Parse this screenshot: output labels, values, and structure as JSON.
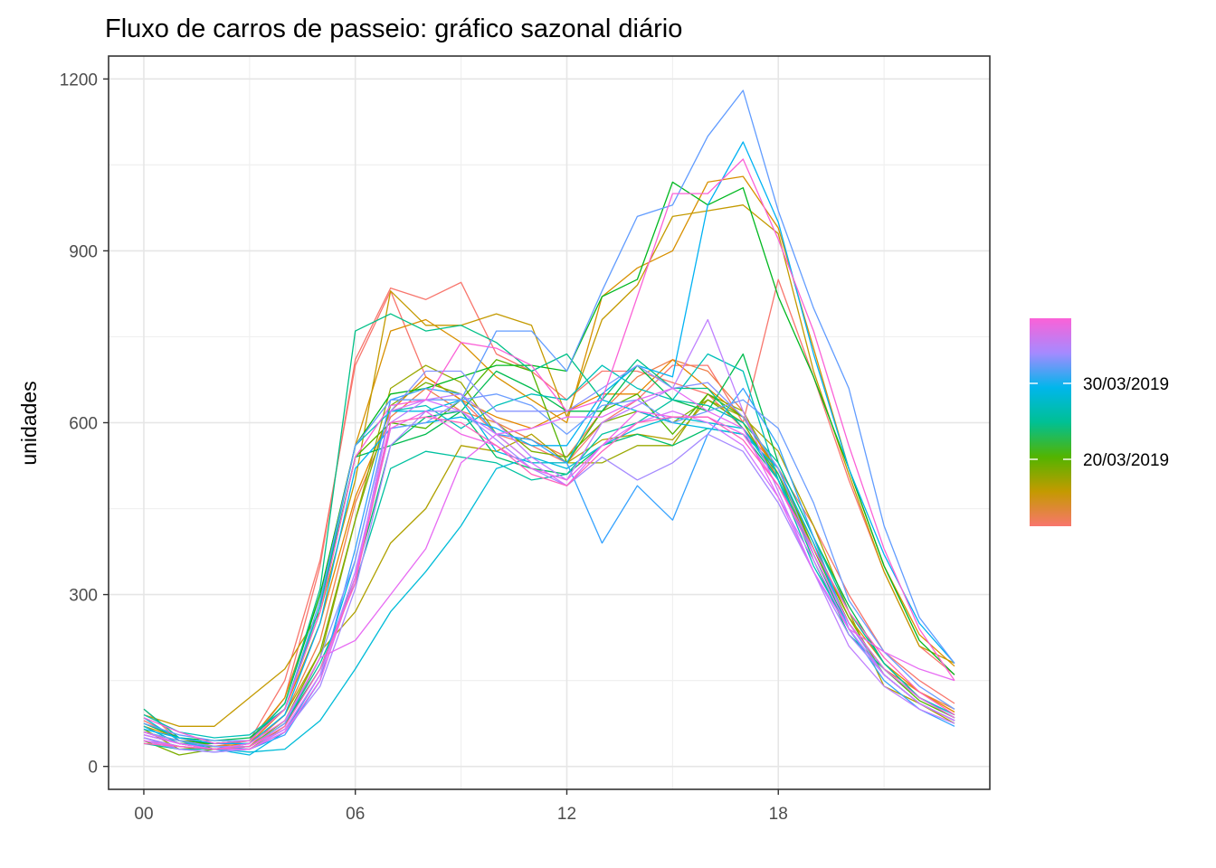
{
  "chart_data": {
    "type": "line",
    "title": "Fluxo de carros de passeio: gráfico sazonal diário",
    "xlabel": "",
    "ylabel": "unidades",
    "x_ticks": [
      "00",
      "06",
      "12",
      "18"
    ],
    "x_tick_values": [
      0,
      6,
      12,
      18
    ],
    "xlim": [
      -1,
      24
    ],
    "y_ticks": [
      "0",
      "300",
      "600",
      "900",
      "1200"
    ],
    "y_tick_values": [
      0,
      300,
      600,
      900,
      1200
    ],
    "ylim": [
      -40,
      1240
    ],
    "x": [
      0,
      1,
      2,
      3,
      4,
      5,
      6,
      7,
      8,
      9,
      10,
      11,
      12,
      13,
      14,
      15,
      16,
      17,
      18,
      19,
      20,
      21,
      22,
      23
    ],
    "grid": true,
    "legend": {
      "type": "colorbar",
      "position": "right",
      "labels": [
        "30/03/2019",
        "20/03/2019"
      ],
      "gradient_colors": [
        "#F8766D",
        "#C49A00",
        "#53B400",
        "#00C094",
        "#00B6EB",
        "#A58AFF",
        "#FB61D7"
      ]
    },
    "series": [
      {
        "color": "#F8766D",
        "values": [
          100,
          45,
          30,
          40,
          120,
          350,
          710,
          835,
          815,
          845,
          720,
          690,
          640,
          690,
          690,
          670,
          650,
          590,
          520,
          420,
          300,
          200,
          150,
          110
        ]
      },
      {
        "color": "#F8766D",
        "values": [
          80,
          50,
          35,
          45,
          150,
          360,
          700,
          830,
          680,
          640,
          580,
          560,
          530,
          600,
          640,
          700,
          700,
          600,
          850,
          680,
          500,
          340,
          210,
          160
        ]
      },
      {
        "color": "#EF7F49",
        "values": [
          55,
          40,
          30,
          35,
          90,
          220,
          460,
          610,
          660,
          620,
          600,
          570,
          540,
          620,
          680,
          710,
          690,
          620,
          500,
          380,
          250,
          170,
          130,
          100
        ]
      },
      {
        "color": "#E58700",
        "values": [
          60,
          45,
          35,
          40,
          100,
          250,
          470,
          620,
          680,
          640,
          610,
          590,
          620,
          650,
          650,
          710,
          660,
          610,
          510,
          390,
          260,
          180,
          130,
          95
        ]
      },
      {
        "color": "#D89000",
        "values": [
          70,
          50,
          40,
          45,
          120,
          300,
          560,
          760,
          780,
          740,
          680,
          640,
          600,
          820,
          870,
          900,
          1020,
          1030,
          940,
          730,
          520,
          350,
          230,
          175
        ]
      },
      {
        "color": "#C49A00",
        "values": [
          90,
          70,
          70,
          120,
          170,
          270,
          500,
          830,
          770,
          770,
          790,
          770,
          610,
          780,
          840,
          960,
          970,
          980,
          930,
          690,
          510,
          340,
          210,
          180
        ]
      },
      {
        "color": "#B0A100",
        "values": [
          60,
          40,
          30,
          40,
          90,
          200,
          270,
          390,
          450,
          560,
          550,
          580,
          530,
          570,
          580,
          570,
          640,
          610,
          550,
          420,
          270,
          140,
          110,
          75
        ]
      },
      {
        "color": "#99A800",
        "values": [
          65,
          30,
          35,
          30,
          70,
          190,
          430,
          660,
          700,
          670,
          580,
          530,
          530,
          530,
          560,
          560,
          650,
          620,
          510,
          380,
          250,
          170,
          120,
          85
        ]
      },
      {
        "color": "#7CAE00",
        "values": [
          45,
          20,
          30,
          35,
          80,
          200,
          430,
          630,
          670,
          650,
          600,
          550,
          540,
          600,
          620,
          600,
          640,
          600,
          500,
          380,
          260,
          160,
          110,
          80
        ]
      },
      {
        "color": "#53B400",
        "values": [
          70,
          40,
          40,
          45,
          100,
          270,
          540,
          600,
          590,
          640,
          710,
          690,
          530,
          620,
          650,
          580,
          650,
          610,
          520,
          380,
          250,
          170,
          115,
          85
        ]
      },
      {
        "color": "#00B81F",
        "values": [
          60,
          45,
          40,
          45,
          110,
          300,
          560,
          650,
          660,
          680,
          700,
          700,
          690,
          820,
          850,
          1020,
          980,
          1010,
          820,
          680,
          520,
          350,
          220,
          160
        ]
      },
      {
        "color": "#00BB4E",
        "values": [
          75,
          50,
          45,
          50,
          100,
          280,
          540,
          560,
          580,
          620,
          690,
          660,
          620,
          620,
          700,
          640,
          620,
          720,
          530,
          400,
          280,
          180,
          120,
          90
        ]
      },
      {
        "color": "#00BE6C",
        "values": [
          50,
          35,
          30,
          35,
          75,
          170,
          330,
          560,
          610,
          620,
          540,
          520,
          510,
          560,
          580,
          560,
          590,
          580,
          500,
          370,
          240,
          160,
          110,
          80
        ]
      },
      {
        "color": "#00C087",
        "values": [
          100,
          50,
          40,
          45,
          110,
          310,
          760,
          790,
          760,
          770,
          740,
          690,
          720,
          640,
          710,
          660,
          660,
          590,
          510,
          360,
          230,
          170,
          120,
          90
        ]
      },
      {
        "color": "#00C1A0",
        "values": [
          40,
          30,
          30,
          35,
          75,
          180,
          320,
          520,
          550,
          540,
          530,
          500,
          510,
          580,
          600,
          640,
          630,
          600,
          530,
          400,
          270,
          180,
          120,
          85
        ]
      },
      {
        "color": "#00C0B8",
        "values": [
          90,
          60,
          50,
          55,
          100,
          280,
          560,
          620,
          630,
          590,
          630,
          650,
          640,
          700,
          660,
          640,
          720,
          690,
          500,
          350,
          240,
          160,
          110,
          80
        ]
      },
      {
        "color": "#00BCD8",
        "values": [
          85,
          45,
          30,
          25,
          30,
          80,
          170,
          270,
          340,
          420,
          520,
          540,
          520,
          560,
          590,
          610,
          600,
          590,
          500,
          370,
          250,
          170,
          120,
          90
        ]
      },
      {
        "color": "#00B9E3",
        "values": [
          70,
          40,
          30,
          20,
          60,
          160,
          360,
          620,
          620,
          640,
          550,
          530,
          530,
          640,
          620,
          600,
          590,
          580,
          520,
          390,
          240,
          160,
          110,
          80
        ]
      },
      {
        "color": "#00B2F3",
        "values": [
          65,
          50,
          40,
          40,
          90,
          250,
          520,
          590,
          600,
          610,
          590,
          560,
          560,
          650,
          700,
          680,
          980,
          1090,
          950,
          720,
          520,
          370,
          250,
          180
        ]
      },
      {
        "color": "#35A2FF",
        "values": [
          55,
          40,
          35,
          30,
          55,
          150,
          380,
          640,
          660,
          650,
          580,
          570,
          530,
          390,
          490,
          430,
          580,
          660,
          560,
          400,
          240,
          150,
          100,
          70
        ]
      },
      {
        "color": "#619CFF",
        "values": [
          75,
          55,
          45,
          45,
          100,
          290,
          560,
          640,
          640,
          640,
          760,
          760,
          690,
          830,
          960,
          980,
          1100,
          1180,
          970,
          800,
          660,
          420,
          260,
          180
        ]
      },
      {
        "color": "#6D9EFF",
        "values": [
          50,
          30,
          25,
          30,
          60,
          150,
          330,
          590,
          600,
          640,
          650,
          630,
          580,
          630,
          640,
          600,
          620,
          640,
          590,
          460,
          290,
          200,
          140,
          100
        ]
      },
      {
        "color": "#8794FF",
        "values": [
          60,
          45,
          35,
          35,
          75,
          190,
          360,
          620,
          690,
          690,
          620,
          620,
          620,
          660,
          700,
          660,
          670,
          610,
          520,
          370,
          250,
          160,
          110,
          80
        ]
      },
      {
        "color": "#A58AFF",
        "values": [
          45,
          30,
          25,
          30,
          60,
          140,
          310,
          560,
          620,
          620,
          570,
          520,
          490,
          540,
          500,
          530,
          580,
          550,
          460,
          340,
          230,
          160,
          110,
          80
        ]
      },
      {
        "color": "#BF80FF",
        "values": [
          50,
          35,
          30,
          30,
          65,
          160,
          340,
          600,
          640,
          650,
          600,
          540,
          500,
          600,
          630,
          660,
          780,
          620,
          480,
          340,
          210,
          140,
          100,
          75
        ]
      },
      {
        "color": "#D376FF",
        "values": [
          55,
          40,
          30,
          35,
          65,
          160,
          330,
          620,
          640,
          620,
          580,
          530,
          490,
          560,
          600,
          620,
          600,
          560,
          470,
          360,
          240,
          160,
          110,
          80
        ]
      },
      {
        "color": "#E76BF3",
        "values": [
          60,
          40,
          30,
          40,
          80,
          190,
          220,
          300,
          380,
          530,
          580,
          590,
          610,
          610,
          640,
          660,
          620,
          590,
          470,
          340,
          240,
          200,
          170,
          150
        ]
      },
      {
        "color": "#F166E8",
        "values": [
          45,
          35,
          30,
          30,
          60,
          150,
          330,
          590,
          620,
          580,
          560,
          520,
          500,
          560,
          620,
          610,
          610,
          580,
          490,
          370,
          250,
          170,
          120,
          85
        ]
      },
      {
        "color": "#FB61D7",
        "values": [
          85,
          60,
          40,
          45,
          100,
          270,
          540,
          630,
          640,
          740,
          730,
          700,
          620,
          640,
          820,
          1000,
          1000,
          1060,
          920,
          760,
          560,
          380,
          240,
          150
        ]
      },
      {
        "color": "#FF62BC",
        "values": [
          40,
          35,
          30,
          35,
          70,
          170,
          320,
          600,
          610,
          600,
          560,
          510,
          490,
          550,
          600,
          610,
          610,
          570,
          490,
          380,
          270,
          190,
          130,
          90
        ]
      }
    ]
  }
}
